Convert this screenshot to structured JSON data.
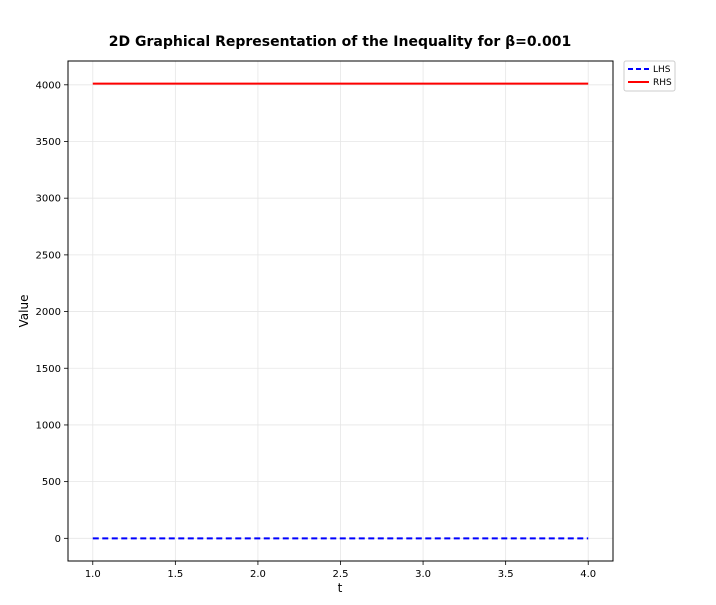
{
  "chart_data": {
    "type": "line",
    "title": "2D Graphical Representation of the Inequality for β=0.001",
    "xlabel": "t",
    "ylabel": "Value",
    "xlim": [
      0.85,
      4.15
    ],
    "ylim": [
      -200,
      4210
    ],
    "x_ticks": [
      1.0,
      1.5,
      2.0,
      2.5,
      3.0,
      3.5,
      4.0
    ],
    "x_tick_labels": [
      "1.0",
      "1.5",
      "2.0",
      "2.5",
      "3.0",
      "3.5",
      "4.0"
    ],
    "y_ticks": [
      0,
      500,
      1000,
      1500,
      2000,
      2500,
      3000,
      3500,
      4000
    ],
    "y_tick_labels": [
      "0",
      "500",
      "1000",
      "1500",
      "2000",
      "2500",
      "3000",
      "3500",
      "4000"
    ],
    "grid": true,
    "legend_position": "outside-top-right",
    "series": [
      {
        "name": "LHS",
        "color": "#0000ff",
        "style": "dashed",
        "x": [
          1.0,
          4.0
        ],
        "y": [
          0,
          0
        ]
      },
      {
        "name": "RHS",
        "color": "#ff0000",
        "style": "solid",
        "x": [
          1.0,
          4.0
        ],
        "y": [
          4010,
          4010
        ]
      }
    ]
  }
}
